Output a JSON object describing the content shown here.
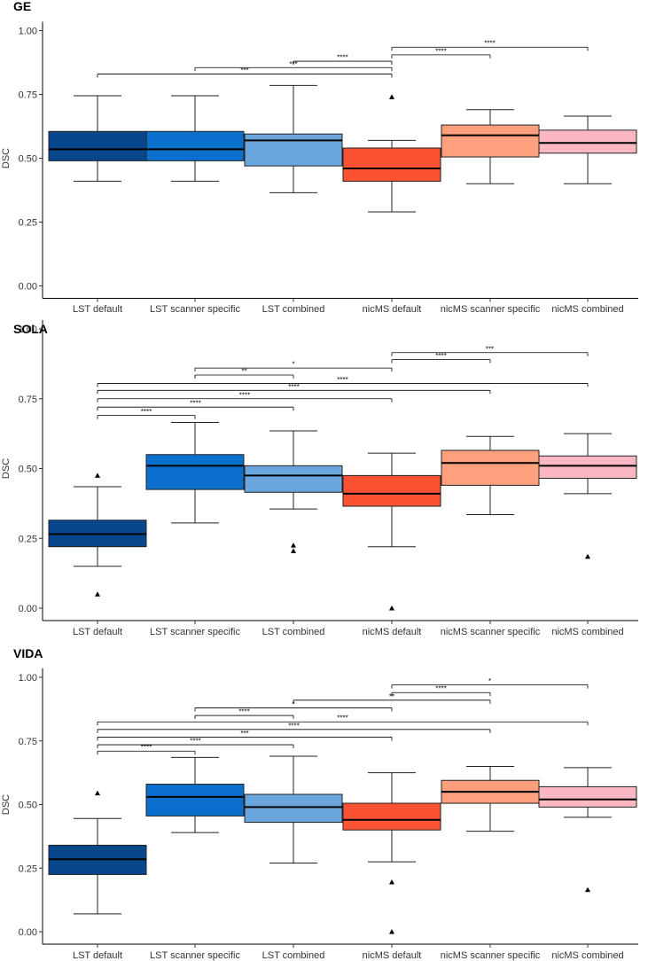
{
  "figure": {
    "ylabel": "DSC"
  },
  "chart_data": [
    {
      "type": "box",
      "title": "GE",
      "ylabel": "DSC",
      "ylim": [
        0,
        1
      ],
      "yticks": [
        "0.00",
        "0.25",
        "0.50",
        "0.75",
        "1.00"
      ],
      "categories": [
        "LST default",
        "LST scanner specific",
        "LST combined",
        "nicMS default",
        "nicMS scanner specific",
        "nicMS combined"
      ],
      "colors": [
        "#08478c",
        "#0a6fcd",
        "#6aa5de",
        "#fb5233",
        "#fca07e",
        "#fbb8c3"
      ],
      "boxes": [
        {
          "min": 0.41,
          "q1": 0.49,
          "median": 0.535,
          "q3": 0.605,
          "max": 0.745,
          "outliers": []
        },
        {
          "min": 0.41,
          "q1": 0.49,
          "median": 0.535,
          "q3": 0.605,
          "max": 0.745,
          "outliers": []
        },
        {
          "min": 0.365,
          "q1": 0.47,
          "median": 0.57,
          "q3": 0.595,
          "max": 0.785,
          "outliers": []
        },
        {
          "min": 0.29,
          "q1": 0.41,
          "median": 0.46,
          "q3": 0.54,
          "max": 0.57,
          "outliers": [
            0.74
          ]
        },
        {
          "min": 0.4,
          "q1": 0.505,
          "median": 0.59,
          "q3": 0.63,
          "max": 0.69,
          "outliers": []
        },
        {
          "min": 0.4,
          "q1": 0.52,
          "median": 0.56,
          "q3": 0.61,
          "max": 0.665,
          "outliers": []
        }
      ],
      "significance": [
        {
          "from": 3,
          "to": 5,
          "label": "****",
          "y": 0.935
        },
        {
          "from": 3,
          "to": 4,
          "label": "****",
          "y": 0.905
        },
        {
          "from": 2,
          "to": 3,
          "label": "****",
          "y": 0.88
        },
        {
          "from": 1,
          "to": 3,
          "label": "***",
          "y": 0.855
        },
        {
          "from": 0,
          "to": 3,
          "label": "***",
          "y": 0.83
        }
      ]
    },
    {
      "type": "box",
      "title": "SOLA",
      "ylabel": "DSC",
      "ylim": [
        0,
        1
      ],
      "yticks": [
        "0.00",
        "0.25",
        "0.50",
        "0.75",
        "1.00"
      ],
      "categories": [
        "LST default",
        "LST scanner specific",
        "LST combined",
        "nicMS default",
        "nicMS scanner specific",
        "nicMS combined"
      ],
      "colors": [
        "#08478c",
        "#0a6fcd",
        "#6aa5de",
        "#fb5233",
        "#fca07e",
        "#fbb8c3"
      ],
      "boxes": [
        {
          "min": 0.15,
          "q1": 0.22,
          "median": 0.265,
          "q3": 0.315,
          "max": 0.435,
          "outliers": [
            0.475,
            0.05
          ]
        },
        {
          "min": 0.305,
          "q1": 0.425,
          "median": 0.51,
          "q3": 0.55,
          "max": 0.665,
          "outliers": []
        },
        {
          "min": 0.355,
          "q1": 0.415,
          "median": 0.475,
          "q3": 0.51,
          "max": 0.635,
          "outliers": [
            0.225,
            0.205
          ]
        },
        {
          "min": 0.22,
          "q1": 0.365,
          "median": 0.41,
          "q3": 0.475,
          "max": 0.555,
          "outliers": [
            0.0
          ]
        },
        {
          "min": 0.335,
          "q1": 0.44,
          "median": 0.52,
          "q3": 0.565,
          "max": 0.615,
          "outliers": []
        },
        {
          "min": 0.41,
          "q1": 0.465,
          "median": 0.51,
          "q3": 0.545,
          "max": 0.625,
          "outliers": [
            0.185
          ]
        }
      ],
      "significance": [
        {
          "from": 3,
          "to": 5,
          "label": "***",
          "y": 0.915
        },
        {
          "from": 3,
          "to": 4,
          "label": "****",
          "y": 0.89
        },
        {
          "from": 1,
          "to": 3,
          "label": "*",
          "y": 0.86
        },
        {
          "from": 1,
          "to": 2,
          "label": "**",
          "y": 0.835
        },
        {
          "from": 0,
          "to": 5,
          "label": "****",
          "y": 0.805
        },
        {
          "from": 0,
          "to": 4,
          "label": "****",
          "y": 0.78
        },
        {
          "from": 0,
          "to": 3,
          "label": "****",
          "y": 0.75
        },
        {
          "from": 0,
          "to": 2,
          "label": "****",
          "y": 0.72
        },
        {
          "from": 0,
          "to": 1,
          "label": "****",
          "y": 0.69
        }
      ]
    },
    {
      "type": "box",
      "title": "VIDA",
      "ylabel": "DSC",
      "ylim": [
        0,
        1
      ],
      "yticks": [
        "0.00",
        "0.25",
        "0.50",
        "0.75",
        "1.00"
      ],
      "categories": [
        "LST default",
        "LST scanner specific",
        "LST combined",
        "nicMS default",
        "nicMS scanner specific",
        "nicMS combined"
      ],
      "colors": [
        "#08478c",
        "#0a6fcd",
        "#6aa5de",
        "#fb5233",
        "#fca07e",
        "#fbb8c3"
      ],
      "boxes": [
        {
          "min": 0.07,
          "q1": 0.225,
          "median": 0.285,
          "q3": 0.34,
          "max": 0.445,
          "outliers": [
            0.545
          ]
        },
        {
          "min": 0.39,
          "q1": 0.455,
          "median": 0.53,
          "q3": 0.58,
          "max": 0.685,
          "outliers": []
        },
        {
          "min": 0.27,
          "q1": 0.43,
          "median": 0.49,
          "q3": 0.54,
          "max": 0.69,
          "outliers": []
        },
        {
          "min": 0.275,
          "q1": 0.4,
          "median": 0.44,
          "q3": 0.505,
          "max": 0.625,
          "outliers": [
            0.195,
            0.0
          ]
        },
        {
          "min": 0.395,
          "q1": 0.505,
          "median": 0.55,
          "q3": 0.595,
          "max": 0.65,
          "outliers": []
        },
        {
          "min": 0.45,
          "q1": 0.49,
          "median": 0.52,
          "q3": 0.57,
          "max": 0.645,
          "outliers": [
            0.165
          ]
        }
      ],
      "significance": [
        {
          "from": 3,
          "to": 5,
          "label": "*",
          "y": 0.97
        },
        {
          "from": 3,
          "to": 4,
          "label": "****",
          "y": 0.94
        },
        {
          "from": 2,
          "to": 4,
          "label": "**",
          "y": 0.91
        },
        {
          "from": 1,
          "to": 3,
          "label": "*",
          "y": 0.88
        },
        {
          "from": 1,
          "to": 2,
          "label": "****",
          "y": 0.85
        },
        {
          "from": 0,
          "to": 5,
          "label": "****",
          "y": 0.825
        },
        {
          "from": 0,
          "to": 4,
          "label": "****",
          "y": 0.795
        },
        {
          "from": 0,
          "to": 3,
          "label": "***",
          "y": 0.765
        },
        {
          "from": 0,
          "to": 2,
          "label": "****",
          "y": 0.735
        },
        {
          "from": 0,
          "to": 1,
          "label": "****",
          "y": 0.71
        }
      ]
    }
  ]
}
